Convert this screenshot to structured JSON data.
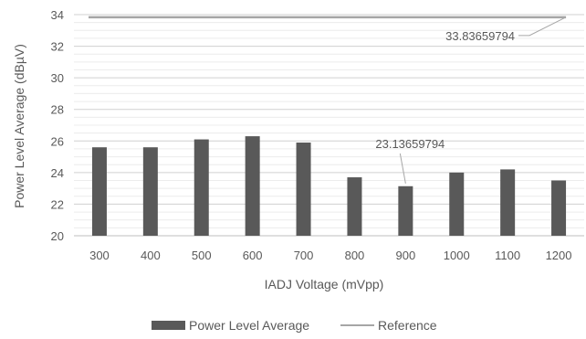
{
  "chart_data": {
    "type": "bar",
    "xlabel": "IADJ Voltage (mVpp)",
    "ylabel": "Power Level Average (dBµV)",
    "ylim": [
      20,
      34
    ],
    "yticks": [
      20,
      22,
      24,
      26,
      28,
      30,
      32,
      34
    ],
    "minor_grid_step": 0.5,
    "grid": true,
    "legend_position": "bottom",
    "categories": [
      "300",
      "400",
      "500",
      "600",
      "700",
      "800",
      "900",
      "1000",
      "1100",
      "1200"
    ],
    "series": [
      {
        "name": "Power Level Average",
        "kind": "bar",
        "color": "#595959",
        "values": [
          25.6,
          25.6,
          26.1,
          26.3,
          25.9,
          23.7,
          23.13659794,
          24.0,
          24.2,
          23.5
        ]
      },
      {
        "name": "Reference",
        "kind": "line",
        "color": "#a6a6a6",
        "values": [
          33.83659794,
          33.83659794,
          33.83659794,
          33.83659794,
          33.83659794,
          33.83659794,
          33.83659794,
          33.83659794,
          33.83659794,
          33.83659794
        ]
      }
    ],
    "annotations": [
      {
        "text": "33.83659794",
        "target_series": "Reference",
        "category": "1200",
        "value": 33.83659794
      },
      {
        "text": "23.13659794",
        "target_series": "Power Level Average",
        "category": "900",
        "value": 23.13659794
      }
    ]
  }
}
